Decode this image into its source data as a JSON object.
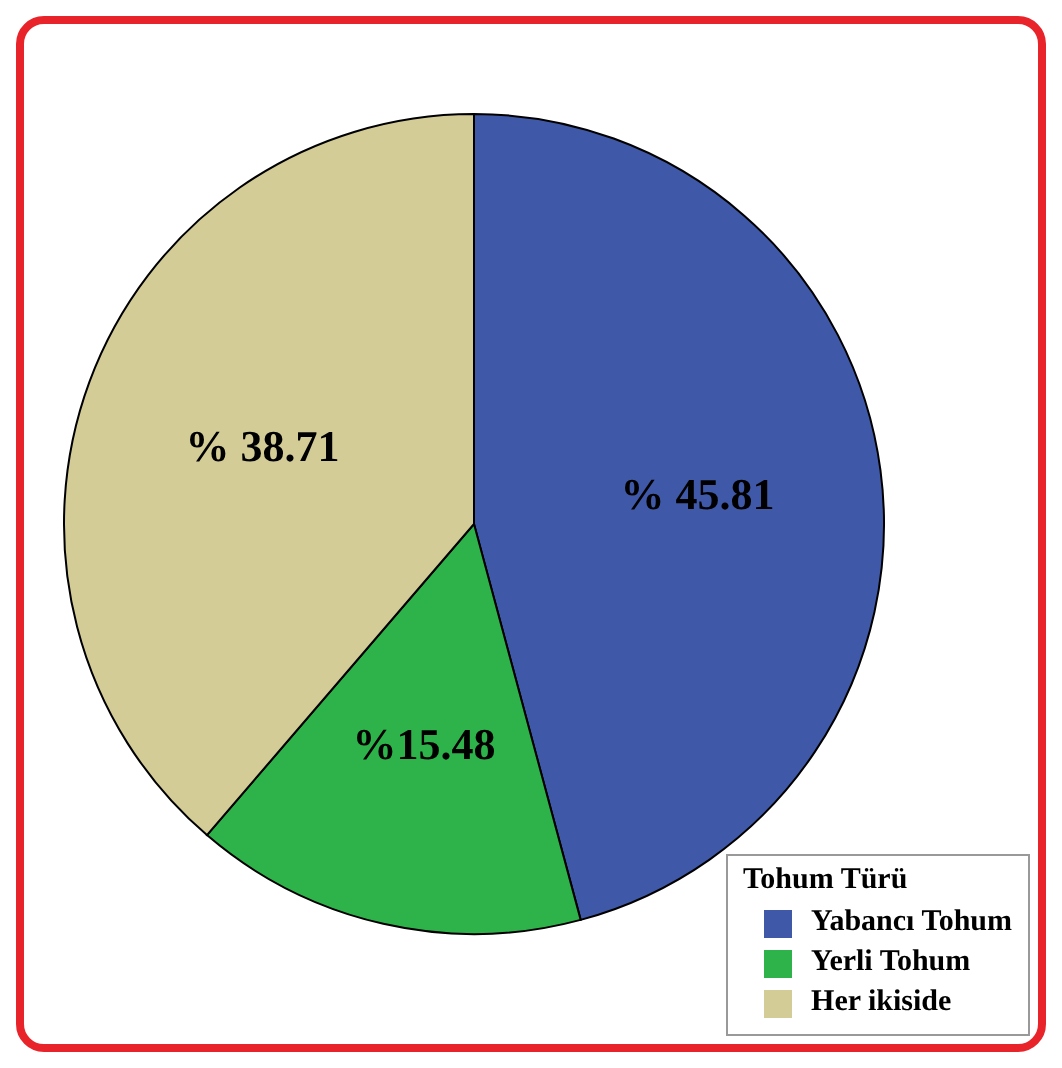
{
  "chart_data": {
    "type": "pie",
    "legend_title": "Tohum Türü",
    "categories": [
      "Yabancı Tohum",
      "Yerli Tohum",
      "Her ikiside"
    ],
    "values": [
      45.81,
      15.48,
      38.71
    ],
    "colors": [
      "#3f59a8",
      "#2db34a",
      "#d3cc97"
    ],
    "value_labels": [
      "% 45.81",
      "%15.48",
      "% 38.71"
    ],
    "legend": "bottom right"
  }
}
